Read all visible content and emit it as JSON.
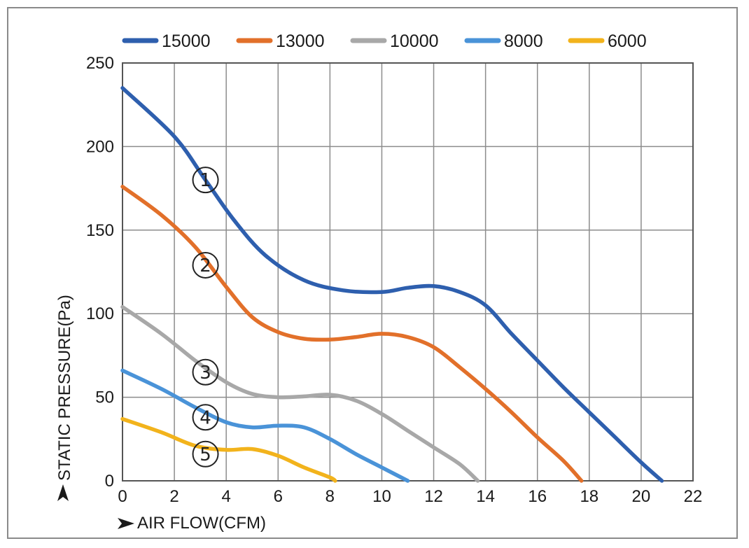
{
  "chart_data": {
    "type": "line",
    "xlabel": "AIR FLOW(CFM)",
    "ylabel": "STATIC PRESSURE(Pa)",
    "xlim": [
      0,
      22
    ],
    "ylim": [
      0,
      250
    ],
    "x_ticks": [
      0,
      2,
      4,
      6,
      8,
      10,
      12,
      14,
      16,
      18,
      20,
      22
    ],
    "y_ticks": [
      0,
      50,
      100,
      150,
      200,
      250
    ],
    "grid": true,
    "legend_position": "top",
    "series": [
      {
        "name": "15000",
        "color": "#2e5fae",
        "marker": "1",
        "points": [
          [
            0,
            235
          ],
          [
            2,
            206
          ],
          [
            3.2,
            180
          ],
          [
            4.3,
            156
          ],
          [
            5.5,
            135
          ],
          [
            7,
            120
          ],
          [
            8.5,
            114
          ],
          [
            10,
            113
          ],
          [
            11,
            115.5
          ],
          [
            12,
            116.5
          ],
          [
            13,
            113
          ],
          [
            14,
            105
          ],
          [
            15,
            88
          ],
          [
            16,
            72
          ],
          [
            17,
            56
          ],
          [
            18,
            41
          ],
          [
            19,
            26
          ],
          [
            20,
            11
          ],
          [
            20.8,
            0
          ]
        ]
      },
      {
        "name": "13000",
        "color": "#e2702a",
        "marker": "2",
        "points": [
          [
            0,
            176
          ],
          [
            1.5,
            159
          ],
          [
            2.8,
            140
          ],
          [
            4,
            116
          ],
          [
            5,
            98
          ],
          [
            6,
            89
          ],
          [
            7,
            85
          ],
          [
            8,
            84.5
          ],
          [
            9,
            86
          ],
          [
            10,
            88
          ],
          [
            11,
            86
          ],
          [
            12,
            80
          ],
          [
            13,
            68
          ],
          [
            14,
            55
          ],
          [
            15,
            41
          ],
          [
            16,
            26
          ],
          [
            17,
            12
          ],
          [
            17.7,
            0
          ]
        ]
      },
      {
        "name": "10000",
        "color": "#a8a8a8",
        "marker": "3",
        "points": [
          [
            0,
            104
          ],
          [
            1.5,
            88
          ],
          [
            2.8,
            72
          ],
          [
            4,
            59
          ],
          [
            5,
            52
          ],
          [
            6,
            50
          ],
          [
            7,
            50.5
          ],
          [
            8,
            51.5
          ],
          [
            9,
            48
          ],
          [
            10,
            40
          ],
          [
            11,
            30
          ],
          [
            12,
            20
          ],
          [
            13,
            10
          ],
          [
            13.7,
            0
          ]
        ]
      },
      {
        "name": "8000",
        "color": "#4a93d8",
        "marker": "4",
        "points": [
          [
            0,
            66
          ],
          [
            1.5,
            55
          ],
          [
            2.8,
            44
          ],
          [
            4,
            35
          ],
          [
            5,
            32
          ],
          [
            6,
            33
          ],
          [
            7,
            32
          ],
          [
            8,
            25
          ],
          [
            9,
            16
          ],
          [
            10,
            8
          ],
          [
            11,
            0
          ]
        ]
      },
      {
        "name": "6000",
        "color": "#f2b31c",
        "marker": "5",
        "points": [
          [
            0,
            37
          ],
          [
            1.5,
            29
          ],
          [
            2.8,
            21
          ],
          [
            4,
            18.5
          ],
          [
            5,
            19
          ],
          [
            6,
            15
          ],
          [
            7,
            8
          ],
          [
            8,
            2
          ],
          [
            8.2,
            0
          ]
        ]
      }
    ],
    "markers": [
      {
        "label": "1",
        "x": 3.2,
        "y": 180
      },
      {
        "label": "2",
        "x": 3.2,
        "y": 129
      },
      {
        "label": "3",
        "x": 3.2,
        "y": 65
      },
      {
        "label": "4",
        "x": 3.2,
        "y": 38
      },
      {
        "label": "5",
        "x": 3.2,
        "y": 16
      }
    ]
  }
}
